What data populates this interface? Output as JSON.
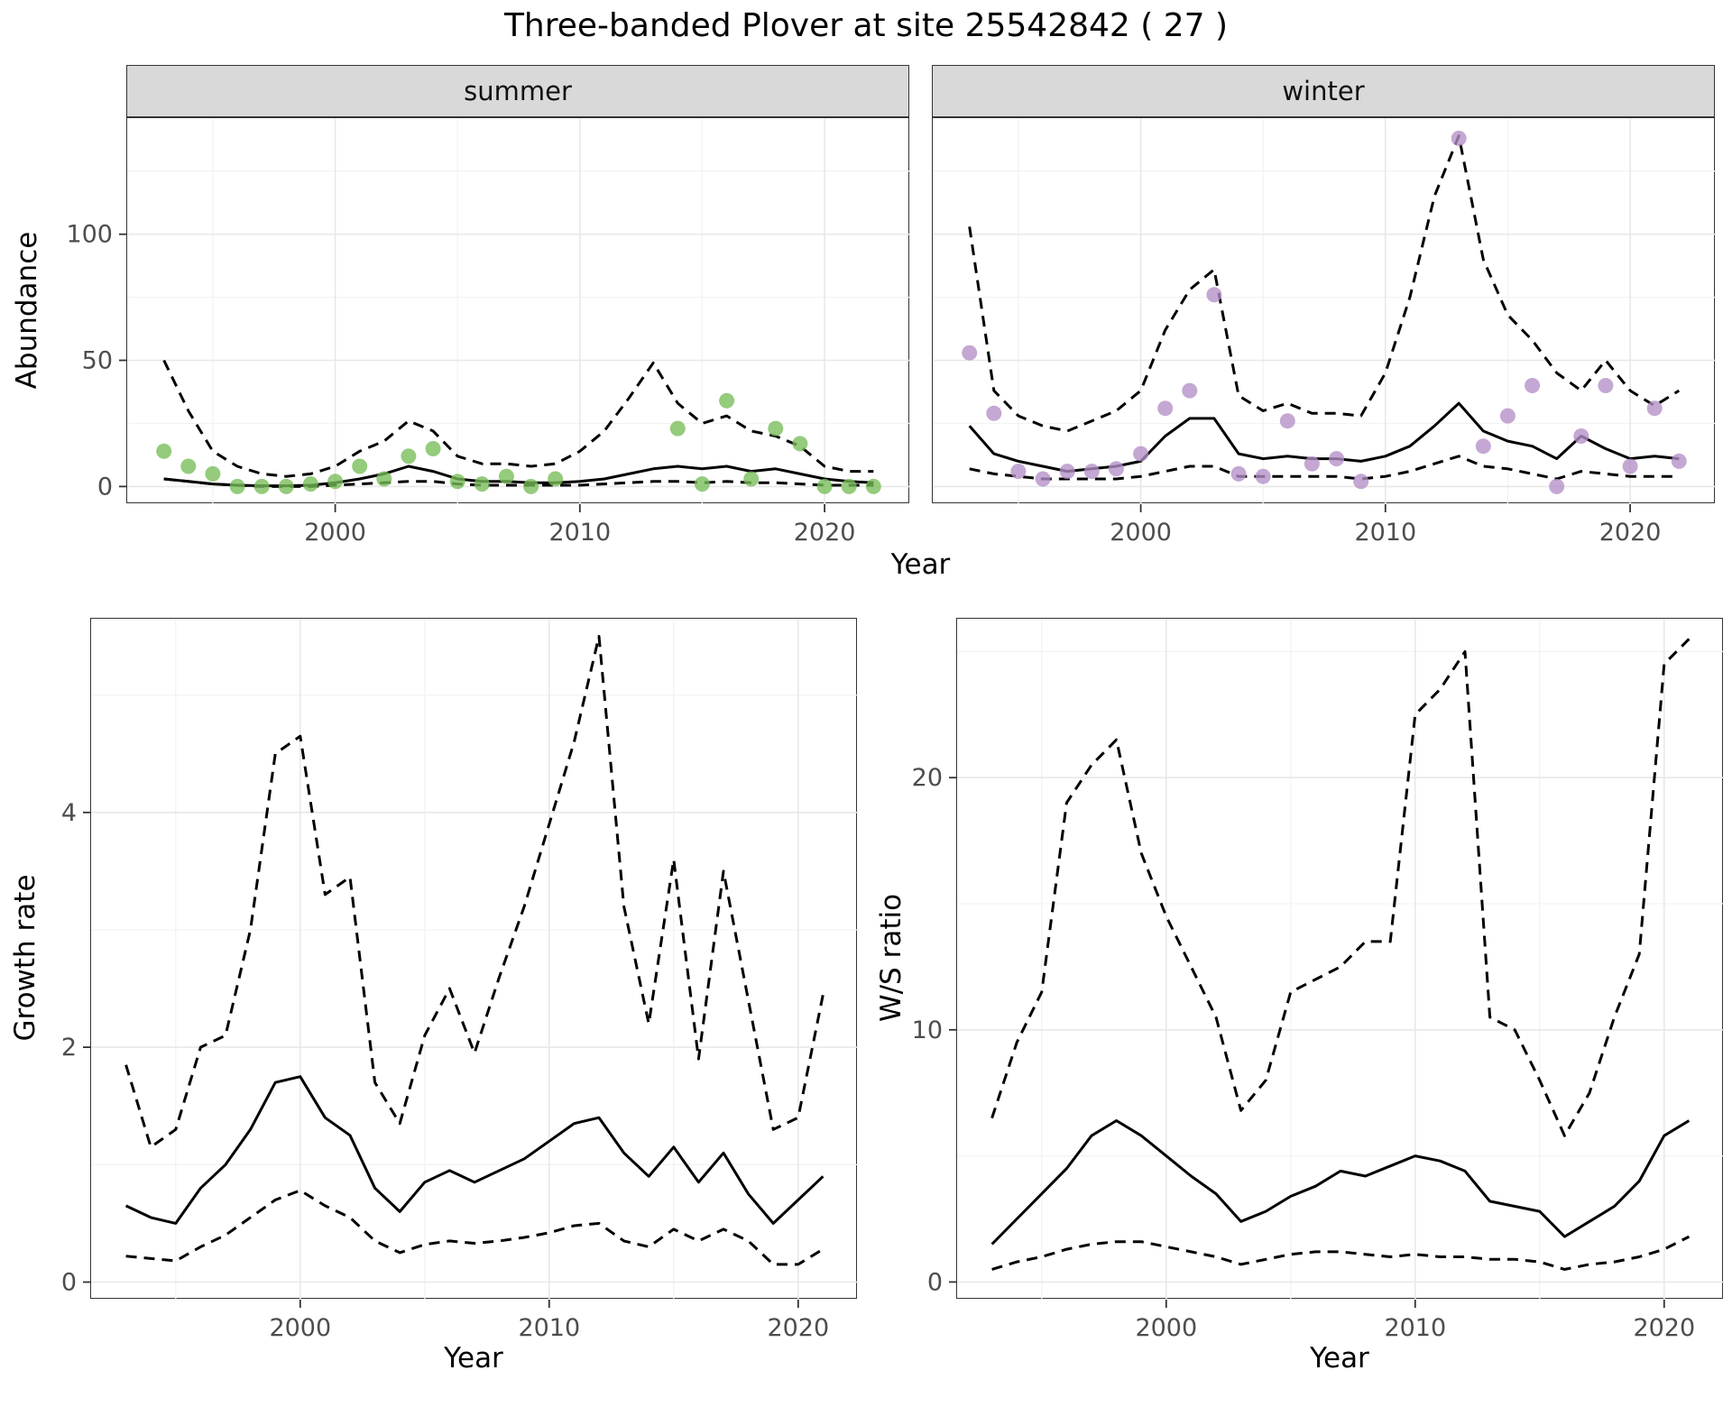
{
  "title": "Three-banded Plover at site 25542842 ( 27 )",
  "colors": {
    "summer_point": "#77bd57",
    "winter_point": "#b48ec7",
    "line": "#000000",
    "grid_major": "#e8e8e8",
    "grid_minor": "#f3f3f3",
    "strip_bg": "#d9d9d9",
    "axis_text": "#4d4d4d"
  },
  "top_plot": {
    "ylabel": "Abundance",
    "xlabel": "Year",
    "facets": [
      "summer",
      "winter"
    ]
  },
  "bottom_left": {
    "ylabel": "Growth rate",
    "xlabel": "Year"
  },
  "bottom_right": {
    "ylabel": "W/S ratio",
    "xlabel": "Year"
  },
  "chart_data": [
    {
      "id": "abundance-summer",
      "type": "line+scatter",
      "facet": "summer",
      "ylabel": "Abundance",
      "xlabel": "Year",
      "xlim": [
        1991.5,
        2023.5
      ],
      "ylim": [
        -7,
        146
      ],
      "x_ticks": [
        2000,
        2010,
        2020
      ],
      "x_minor": [
        1995,
        2005,
        2015
      ],
      "y_ticks": [
        0,
        50,
        100
      ],
      "y_minor": [
        25,
        75,
        125
      ],
      "show_y_labels": true,
      "x": [
        1993,
        1994,
        1995,
        1996,
        1997,
        1998,
        1999,
        2000,
        2001,
        2002,
        2003,
        2004,
        2005,
        2006,
        2007,
        2008,
        2009,
        2010,
        2011,
        2012,
        2013,
        2014,
        2015,
        2016,
        2017,
        2018,
        2019,
        2020,
        2021,
        2022
      ],
      "series": [
        {
          "name": "mean",
          "style": "solid",
          "values": [
            3,
            2,
            1,
            0.5,
            0.3,
            0.3,
            0.5,
            1.5,
            3,
            5,
            8,
            6,
            3,
            2,
            2,
            1.5,
            1.5,
            2,
            3,
            5,
            7,
            8,
            7,
            8,
            6,
            7,
            5,
            3,
            2,
            1.5
          ]
        },
        {
          "name": "upper_ci",
          "style": "dashed",
          "values": [
            50,
            30,
            14,
            8,
            5,
            4,
            5,
            8,
            14,
            18,
            26,
            22,
            12,
            9,
            9,
            8,
            9,
            14,
            22,
            35,
            49,
            33,
            25,
            28,
            22,
            20,
            16,
            8,
            6,
            6
          ]
        },
        {
          "name": "lower_ci",
          "style": "dashed",
          "values": [
            3,
            2,
            1,
            0.5,
            0,
            0,
            0,
            0.5,
            1,
            1.5,
            2,
            2,
            1,
            0.5,
            0.5,
            0.5,
            0.5,
            0.5,
            1,
            1.5,
            2,
            2,
            1.5,
            2,
            1.5,
            1.5,
            1,
            0.5,
            0.5,
            0.5
          ]
        }
      ],
      "points": {
        "color_key": "summer_point",
        "x": [
          1993,
          1994,
          1995,
          1996,
          1997,
          1998,
          1999,
          2000,
          2001,
          2002,
          2003,
          2004,
          2005,
          2006,
          2007,
          2008,
          2009,
          2014,
          2015,
          2016,
          2017,
          2018,
          2019,
          2020,
          2021,
          2022
        ],
        "y": [
          14,
          8,
          5,
          0,
          0,
          0,
          1,
          2,
          8,
          3,
          12,
          15,
          2,
          1,
          4,
          0,
          3,
          23,
          1,
          34,
          3,
          23,
          17,
          0,
          0,
          0
        ]
      }
    },
    {
      "id": "abundance-winter",
      "type": "line+scatter",
      "facet": "winter",
      "ylabel": "Abundance",
      "xlabel": "Year",
      "xlim": [
        1991.5,
        2023.5
      ],
      "ylim": [
        -7,
        146
      ],
      "x_ticks": [
        2000,
        2010,
        2020
      ],
      "x_minor": [
        1995,
        2005,
        2015
      ],
      "y_ticks": [
        0,
        50,
        100
      ],
      "y_minor": [
        25,
        75,
        125
      ],
      "show_y_labels": false,
      "x": [
        1993,
        1994,
        1995,
        1996,
        1997,
        1998,
        1999,
        2000,
        2001,
        2002,
        2003,
        2004,
        2005,
        2006,
        2007,
        2008,
        2009,
        2010,
        2011,
        2012,
        2013,
        2014,
        2015,
        2016,
        2017,
        2018,
        2019,
        2020,
        2021,
        2022
      ],
      "series": [
        {
          "name": "mean",
          "style": "solid",
          "values": [
            24,
            13,
            10,
            8,
            6,
            7,
            8,
            10,
            20,
            27,
            27,
            13,
            11,
            12,
            11,
            11,
            10,
            12,
            16,
            24,
            33,
            22,
            18,
            16,
            11,
            20,
            15,
            11,
            12,
            11
          ]
        },
        {
          "name": "upper_ci",
          "style": "dashed",
          "values": [
            103,
            38,
            28,
            24,
            22,
            26,
            30,
            38,
            62,
            78,
            86,
            36,
            30,
            33,
            29,
            29,
            28,
            45,
            75,
            115,
            139,
            90,
            68,
            58,
            45,
            38,
            50,
            38,
            32,
            38
          ]
        },
        {
          "name": "lower_ci",
          "style": "dashed",
          "values": [
            7,
            5,
            4,
            3,
            3,
            3,
            3,
            4,
            6,
            8,
            8,
            4,
            4,
            4,
            4,
            4,
            3,
            4,
            6,
            9,
            12,
            8,
            7,
            5,
            3,
            6,
            5,
            4,
            4,
            4
          ]
        }
      ],
      "points": {
        "color_key": "winter_point",
        "x": [
          1993,
          1994,
          1995,
          1996,
          1997,
          1998,
          1999,
          2000,
          2001,
          2002,
          2003,
          2004,
          2005,
          2006,
          2007,
          2008,
          2009,
          2013,
          2014,
          2015,
          2016,
          2017,
          2018,
          2019,
          2020,
          2021,
          2022
        ],
        "y": [
          53,
          29,
          6,
          3,
          6,
          6,
          7,
          13,
          31,
          38,
          76,
          5,
          4,
          26,
          9,
          11,
          2,
          138,
          16,
          28,
          40,
          0,
          20,
          40,
          8,
          31,
          10
        ]
      }
    },
    {
      "id": "growth-rate",
      "type": "line",
      "ylabel": "Growth rate",
      "xlabel": "Year",
      "xlim": [
        1991.6,
        2022.4
      ],
      "ylim": [
        -0.15,
        5.65
      ],
      "x_ticks": [
        2000,
        2010,
        2020
      ],
      "x_minor": [
        1995,
        2005,
        2015
      ],
      "y_ticks": [
        0,
        2,
        4
      ],
      "y_minor": [
        1,
        3,
        5
      ],
      "show_y_labels": true,
      "x": [
        1993,
        1994,
        1995,
        1996,
        1997,
        1998,
        1999,
        2000,
        2001,
        2002,
        2003,
        2004,
        2005,
        2006,
        2007,
        2008,
        2009,
        2010,
        2011,
        2012,
        2013,
        2014,
        2015,
        2016,
        2017,
        2018,
        2019,
        2020,
        2021
      ],
      "series": [
        {
          "name": "mean",
          "style": "solid",
          "values": [
            0.65,
            0.55,
            0.5,
            0.8,
            1.0,
            1.3,
            1.7,
            1.75,
            1.4,
            1.25,
            0.8,
            0.6,
            0.85,
            0.95,
            0.85,
            0.95,
            1.05,
            1.2,
            1.35,
            1.4,
            1.1,
            0.9,
            1.15,
            0.85,
            1.1,
            0.75,
            0.5,
            0.7,
            0.9
          ]
        },
        {
          "name": "upper_ci",
          "style": "dashed",
          "values": [
            1.85,
            1.15,
            1.3,
            2.0,
            2.1,
            3.0,
            4.5,
            4.65,
            3.3,
            3.45,
            1.7,
            1.35,
            2.1,
            2.5,
            1.95,
            2.6,
            3.2,
            3.9,
            4.6,
            5.5,
            3.2,
            2.2,
            3.6,
            1.9,
            3.5,
            2.4,
            1.3,
            1.4,
            2.45
          ]
        },
        {
          "name": "lower_ci",
          "style": "dashed",
          "values": [
            0.22,
            0.2,
            0.18,
            0.3,
            0.4,
            0.55,
            0.7,
            0.78,
            0.65,
            0.55,
            0.35,
            0.25,
            0.32,
            0.35,
            0.33,
            0.35,
            0.38,
            0.42,
            0.48,
            0.5,
            0.35,
            0.3,
            0.45,
            0.35,
            0.45,
            0.35,
            0.15,
            0.15,
            0.28
          ]
        }
      ]
    },
    {
      "id": "ws-ratio",
      "type": "line",
      "ylabel": "W/S ratio",
      "xlabel": "Year",
      "xlim": [
        1991.6,
        2022.4
      ],
      "ylim": [
        -0.7,
        26.3
      ],
      "x_ticks": [
        2000,
        2010,
        2020
      ],
      "x_minor": [
        1995,
        2005,
        2015
      ],
      "y_ticks": [
        0,
        10,
        20
      ],
      "y_minor": [
        5,
        15,
        25
      ],
      "show_y_labels": true,
      "x": [
        1993,
        1994,
        1995,
        1996,
        1997,
        1998,
        1999,
        2000,
        2001,
        2002,
        2003,
        2004,
        2005,
        2006,
        2007,
        2008,
        2009,
        2010,
        2011,
        2012,
        2013,
        2014,
        2015,
        2016,
        2017,
        2018,
        2019,
        2020,
        2021
      ],
      "series": [
        {
          "name": "mean",
          "style": "solid",
          "values": [
            1.5,
            2.5,
            3.5,
            4.5,
            5.8,
            6.4,
            5.8,
            5.0,
            4.2,
            3.5,
            2.4,
            2.8,
            3.4,
            3.8,
            4.4,
            4.2,
            4.6,
            5.0,
            4.8,
            4.4,
            3.2,
            3.0,
            2.8,
            1.8,
            2.4,
            3.0,
            4.0,
            5.8,
            6.4
          ]
        },
        {
          "name": "upper_ci",
          "style": "dashed",
          "values": [
            6.5,
            9.5,
            11.5,
            19,
            20.5,
            21.5,
            17,
            14.5,
            12.5,
            10.5,
            6.8,
            8.0,
            11.5,
            12,
            12.5,
            13.5,
            13.5,
            22.5,
            23.5,
            25,
            10.5,
            10,
            8,
            5.8,
            7.5,
            10.5,
            13,
            24.5,
            25.5
          ]
        },
        {
          "name": "lower_ci",
          "style": "dashed",
          "values": [
            0.5,
            0.8,
            1.0,
            1.3,
            1.5,
            1.6,
            1.6,
            1.4,
            1.2,
            1.0,
            0.7,
            0.9,
            1.1,
            1.2,
            1.2,
            1.1,
            1.0,
            1.1,
            1.0,
            1.0,
            0.9,
            0.9,
            0.8,
            0.5,
            0.7,
            0.8,
            1.0,
            1.3,
            1.8
          ]
        }
      ]
    }
  ]
}
